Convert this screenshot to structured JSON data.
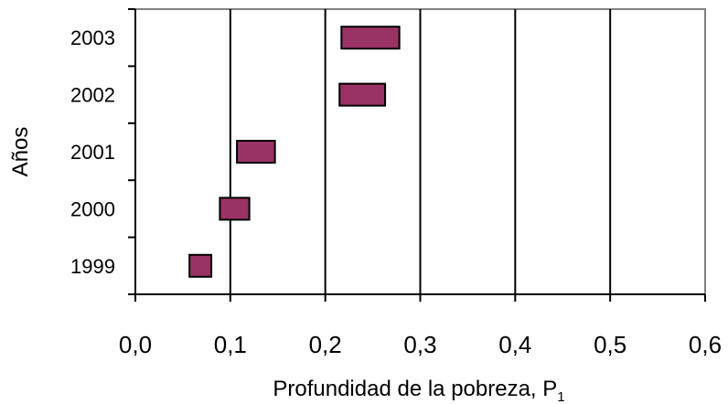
{
  "chart_data": {
    "type": "bar",
    "orientation": "horizontal-range",
    "title": "",
    "xlabel": "Profundidad de la pobreza, P",
    "xlabel_subscript": "1",
    "ylabel": "Años",
    "xlim": [
      0,
      0.6
    ],
    "x_ticks": [
      "0,0",
      "0,1",
      "0,2",
      "0,3",
      "0,4",
      "0,5",
      "0,6"
    ],
    "categories": [
      "1999",
      "2000",
      "2001",
      "2002",
      "2003"
    ],
    "ranges": [
      {
        "category": "1999",
        "low": 0.057,
        "high": 0.08
      },
      {
        "category": "2000",
        "low": 0.089,
        "high": 0.12
      },
      {
        "category": "2001",
        "low": 0.107,
        "high": 0.147
      },
      {
        "category": "2002",
        "low": 0.215,
        "high": 0.263
      },
      {
        "category": "2003",
        "low": 0.217,
        "high": 0.278
      }
    ],
    "grid": "vertical",
    "legend": "none",
    "colors": {
      "bar_fill": "#993366",
      "bar_stroke": "#000000",
      "grid": "#000000"
    }
  }
}
